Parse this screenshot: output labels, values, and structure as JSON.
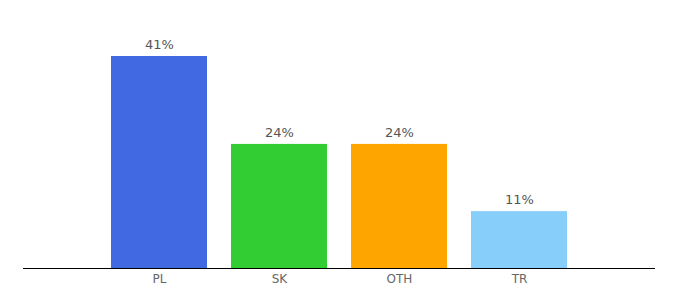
{
  "chart_data": {
    "type": "bar",
    "categories": [
      "PL",
      "SK",
      "OTH",
      "TR"
    ],
    "values": [
      41,
      24,
      24,
      11
    ],
    "value_labels": [
      "41%",
      "24%",
      "24%",
      "11%"
    ],
    "colors": [
      "#4169e1",
      "#32cd32",
      "#ffa500",
      "#87cefa"
    ],
    "ylim": [
      0,
      41
    ],
    "data_labels": true,
    "tick_labels": "x"
  }
}
